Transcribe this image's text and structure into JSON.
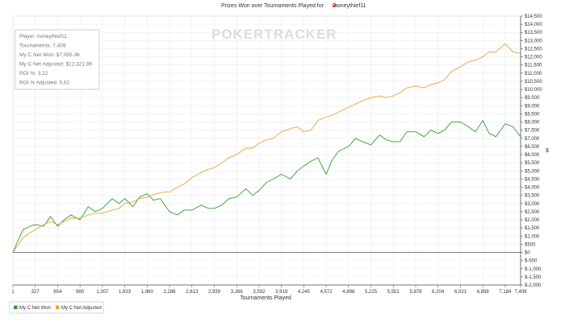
{
  "chart_data": {
    "type": "line",
    "title": "Prizes Won over Tournaments Played for",
    "player_name": "honeythief11",
    "xlabel": "Tournaments Played",
    "ylabel": "$",
    "xlim": [
      1,
      7409
    ],
    "ylim": [
      -2000,
      14500
    ],
    "x_ticks": [
      1,
      327,
      654,
      980,
      1307,
      1633,
      1960,
      2286,
      2613,
      2939,
      3266,
      3592,
      3919,
      4245,
      4572,
      4898,
      5225,
      5551,
      5878,
      6204,
      6531,
      6858,
      7184,
      7409
    ],
    "y_ticks": [
      {
        "v": -2000,
        "label": "$-2,000"
      },
      {
        "v": -1500,
        "label": "$-1,500"
      },
      {
        "v": -1000,
        "label": "$-1,000"
      },
      {
        "v": -500,
        "label": "$-500"
      },
      {
        "v": 0,
        "label": "$0"
      },
      {
        "v": 500,
        "label": "$500"
      },
      {
        "v": 1000,
        "label": "$1,000"
      },
      {
        "v": 1500,
        "label": "$1,500"
      },
      {
        "v": 2000,
        "label": "$2,000"
      },
      {
        "v": 2500,
        "label": "$2,500"
      },
      {
        "v": 3000,
        "label": "$3,000"
      },
      {
        "v": 3500,
        "label": "$3,500"
      },
      {
        "v": 4000,
        "label": "$4,000"
      },
      {
        "v": 4500,
        "label": "$4,500"
      },
      {
        "v": 5000,
        "label": "$5,000"
      },
      {
        "v": 5500,
        "label": "$5,500"
      },
      {
        "v": 6000,
        "label": "$6,000"
      },
      {
        "v": 6500,
        "label": "$6,500"
      },
      {
        "v": 7000,
        "label": "$7,000"
      },
      {
        "v": 7500,
        "label": "$7,500"
      },
      {
        "v": 8000,
        "label": "$8,000"
      },
      {
        "v": 8500,
        "label": "$8,500"
      },
      {
        "v": 9000,
        "label": "$9,000"
      },
      {
        "v": 9500,
        "label": "$9,500"
      },
      {
        "v": 10000,
        "label": "$10,000"
      },
      {
        "v": 10500,
        "label": "$10,500"
      },
      {
        "v": 11000,
        "label": "$11,000"
      },
      {
        "v": 11500,
        "label": "$11,500"
      },
      {
        "v": 12000,
        "label": "$12,000"
      },
      {
        "v": 12500,
        "label": "$12,500"
      },
      {
        "v": 13000,
        "label": "$13,000"
      },
      {
        "v": 13500,
        "label": "$13,500"
      },
      {
        "v": 14000,
        "label": "$14,000"
      },
      {
        "v": 14500,
        "label": "$14,500"
      }
    ],
    "grid": true,
    "legend": "bottom-left",
    "watermark": "POKERTRACKER",
    "series": [
      {
        "name": "My C Net Won",
        "color": "#2ca02c",
        "x": [
          1,
          50,
          150,
          250,
          327,
          450,
          550,
          654,
          750,
          850,
          980,
          1100,
          1200,
          1307,
          1450,
          1550,
          1633,
          1750,
          1850,
          1960,
          2050,
          2150,
          2286,
          2400,
          2500,
          2613,
          2750,
          2850,
          2939,
          3050,
          3150,
          3266,
          3400,
          3500,
          3592,
          3700,
          3800,
          3919,
          4050,
          4150,
          4245,
          4350,
          4450,
          4572,
          4650,
          4750,
          4898,
          5000,
          5100,
          5225,
          5350,
          5450,
          5551,
          5650,
          5750,
          5878,
          6000,
          6100,
          6204,
          6300,
          6400,
          6531,
          6650,
          6750,
          6858,
          6950,
          7050,
          7184,
          7300,
          7409
        ],
        "y": [
          0,
          500,
          1400,
          1600,
          1700,
          1600,
          2200,
          1600,
          2000,
          2300,
          2000,
          2800,
          2500,
          2700,
          3300,
          3000,
          3300,
          2800,
          3400,
          3600,
          3200,
          3300,
          2500,
          2300,
          2600,
          2600,
          2900,
          2700,
          2700,
          2900,
          3300,
          3400,
          3900,
          3500,
          3800,
          4300,
          4500,
          4800,
          4500,
          5000,
          5300,
          5600,
          5800,
          4800,
          5600,
          6200,
          6500,
          7000,
          6800,
          6600,
          7200,
          6900,
          6800,
          6800,
          7400,
          7400,
          7100,
          7500,
          7300,
          7500,
          8000,
          8000,
          7700,
          7400,
          8100,
          7300,
          7100,
          7900,
          7700,
          7100
        ]
      },
      {
        "name": "My C Net Adjusted",
        "color": "#e8a33a",
        "x": [
          1,
          50,
          150,
          250,
          327,
          450,
          550,
          654,
          750,
          850,
          980,
          1100,
          1200,
          1307,
          1450,
          1550,
          1633,
          1750,
          1850,
          1960,
          2100,
          2200,
          2286,
          2400,
          2500,
          2613,
          2750,
          2850,
          2939,
          3050,
          3150,
          3266,
          3400,
          3500,
          3592,
          3700,
          3800,
          3919,
          4050,
          4150,
          4245,
          4350,
          4450,
          4572,
          4650,
          4750,
          4898,
          5000,
          5100,
          5225,
          5350,
          5450,
          5551,
          5650,
          5750,
          5878,
          6000,
          6100,
          6204,
          6300,
          6400,
          6531,
          6650,
          6750,
          6858,
          6950,
          7050,
          7184,
          7300,
          7409
        ],
        "y": [
          0,
          300,
          900,
          1200,
          1400,
          1700,
          1900,
          1700,
          1900,
          2100,
          2100,
          2300,
          2400,
          2400,
          2600,
          2700,
          3000,
          3100,
          3300,
          3400,
          3600,
          3700,
          3700,
          4000,
          4200,
          4600,
          4900,
          5100,
          5200,
          5500,
          5800,
          6000,
          6400,
          6400,
          6700,
          6900,
          7000,
          7400,
          7600,
          7700,
          7400,
          7500,
          8100,
          8300,
          8400,
          8600,
          8900,
          9100,
          9300,
          9500,
          9600,
          9500,
          9600,
          9800,
          10100,
          10200,
          10100,
          10300,
          10400,
          10600,
          11100,
          11400,
          11700,
          11800,
          12000,
          12300,
          12300,
          12800,
          12300,
          12200
        ]
      }
    ],
    "stats_box": [
      "Player: honeythief11",
      "Tournaments: 7,409",
      "My C Net Won: $7,055.36",
      "My C Net Adjusted: $12,321.86",
      "ROI %: 3.22",
      "ROI % Adjusted: 5.62"
    ]
  }
}
